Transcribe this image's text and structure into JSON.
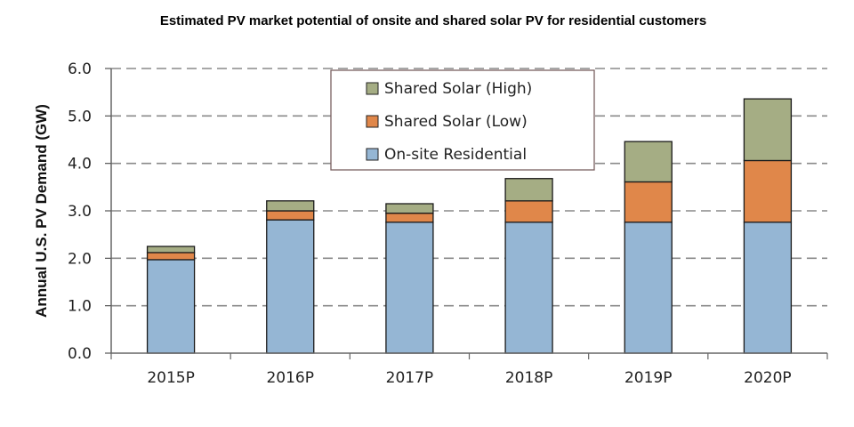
{
  "chart_data": {
    "type": "bar",
    "stacked": true,
    "title": "Estimated PV market potential of onsite and shared solar PV for residential customers",
    "xlabel": "",
    "ylabel": "Annual U.S. PV Demand (GW)",
    "ylim": [
      0,
      6
    ],
    "yticks": [
      "0.0",
      "1.0",
      "2.0",
      "3.0",
      "4.0",
      "5.0",
      "6.0"
    ],
    "grid": true,
    "legend_position": "top-center",
    "categories": [
      "2015P",
      "2016P",
      "2017P",
      "2018P",
      "2019P",
      "2020P"
    ],
    "series": [
      {
        "name": "On-site Residential",
        "color": "#95b6d4",
        "values": [
          1.97,
          2.81,
          2.76,
          2.76,
          2.76,
          2.76
        ]
      },
      {
        "name": "Shared Solar (Low)",
        "color": "#e0874a",
        "values": [
          0.15,
          0.19,
          0.19,
          0.45,
          0.85,
          1.3
        ]
      },
      {
        "name": "Shared Solar (High)",
        "color": "#a5ad84",
        "values": [
          0.13,
          0.21,
          0.2,
          0.47,
          0.85,
          1.3
        ]
      }
    ],
    "legend_order": [
      2,
      1,
      0
    ]
  }
}
